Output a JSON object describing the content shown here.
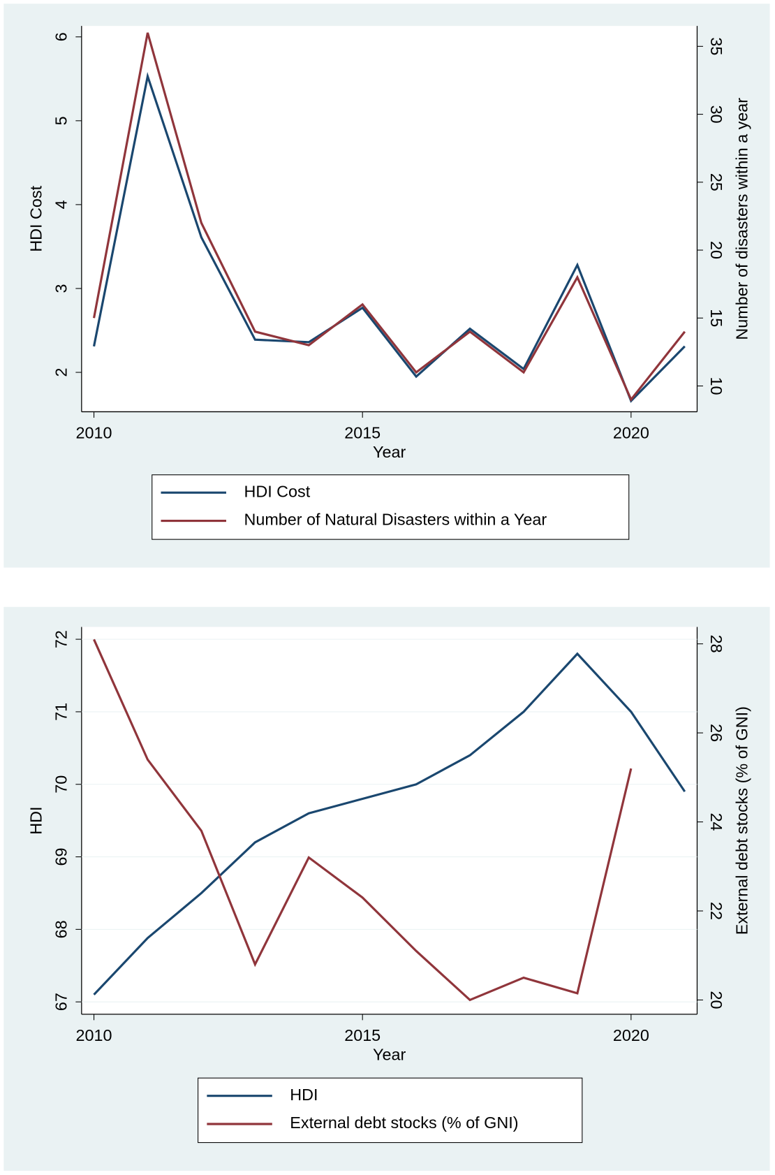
{
  "chart_data": [
    {
      "type": "line",
      "xlabel": "Year",
      "ylabel": "HDI Cost",
      "y2label": "Number of disasters within a year",
      "x": [
        2010,
        2011,
        2012,
        2013,
        2014,
        2015,
        2016,
        2017,
        2018,
        2019,
        2020,
        2021
      ],
      "series": [
        {
          "name": "HDI Cost",
          "color": "#1a476f",
          "axis": "y",
          "values": [
            2.31,
            5.53,
            3.61,
            2.39,
            2.36,
            2.77,
            1.95,
            2.52,
            2.04,
            3.28,
            1.66,
            2.31
          ]
        },
        {
          "name": "Number of Natural Disasters within a Year",
          "color": "#90353b",
          "axis": "y2",
          "values": [
            15,
            36,
            22,
            14,
            13,
            16,
            11,
            14,
            11,
            18,
            9,
            14
          ]
        }
      ],
      "xlim": [
        2009.77,
        2021.23
      ],
      "xticks": [
        2010,
        2015,
        2020
      ],
      "ylim": [
        1.53,
        6.13
      ],
      "yticks": [
        2,
        3,
        4,
        5,
        6
      ],
      "y2lim": [
        8.1,
        36.5
      ],
      "y2ticks": [
        10,
        15,
        20,
        25,
        30,
        35
      ],
      "grid": false
    },
    {
      "type": "line",
      "xlabel": "Year",
      "ylabel": "HDI",
      "y2label": "External debt stocks (% of GNI)",
      "x": [
        2010,
        2011,
        2012,
        2013,
        2014,
        2015,
        2016,
        2017,
        2018,
        2019,
        2020,
        2021
      ],
      "series": [
        {
          "name": "HDI",
          "color": "#1a476f",
          "axis": "y",
          "values": [
            67.1,
            67.88,
            68.5,
            69.2,
            69.6,
            69.8,
            70.0,
            70.4,
            71.0,
            71.8,
            71.0,
            69.9
          ]
        },
        {
          "name": "External debt stocks (% of GNI)",
          "color": "#90353b",
          "axis": "y2",
          "values": [
            28.1,
            25.4,
            23.8,
            20.8,
            23.2,
            22.3,
            21.1,
            20.0,
            20.5,
            20.15,
            25.2,
            null
          ]
        }
      ],
      "xlim": [
        2009.77,
        2021.23
      ],
      "xticks": [
        2010,
        2015,
        2020
      ],
      "ylim": [
        66.83,
        72.17
      ],
      "yticks": [
        67,
        68,
        69,
        70,
        71,
        72
      ],
      "y2lim": [
        19.68,
        28.38
      ],
      "y2ticks": [
        20,
        22,
        24,
        26,
        28
      ],
      "grid": true
    }
  ]
}
